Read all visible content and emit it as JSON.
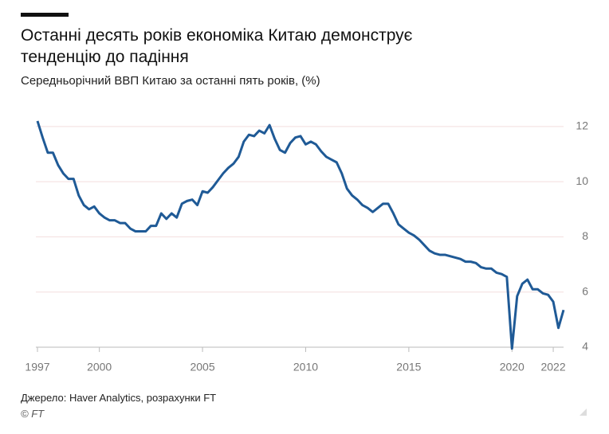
{
  "chart_data": {
    "type": "line",
    "title": "Останні десять років економіка Китаю демонструє тенденцію до падіння",
    "subtitle": "Середньорічний ВВП Китаю за останні пять років, (%)",
    "source": "Джерело: Haver Analytics, розрахунки FT",
    "credit": "© FT",
    "color": "#1f5a96",
    "grid": true,
    "x": [
      1997,
      1997.25,
      1997.5,
      1997.75,
      1998,
      1998.25,
      1998.5,
      1998.75,
      1999,
      1999.25,
      1999.5,
      1999.75,
      2000,
      2000.25,
      2000.5,
      2000.75,
      2001,
      2001.25,
      2001.5,
      2001.75,
      2002,
      2002.25,
      2002.5,
      2002.75,
      2003,
      2003.25,
      2003.5,
      2003.75,
      2004,
      2004.25,
      2004.5,
      2004.75,
      2005,
      2005.25,
      2005.5,
      2005.75,
      2006,
      2006.25,
      2006.5,
      2006.75,
      2007,
      2007.25,
      2007.5,
      2007.75,
      2008,
      2008.25,
      2008.5,
      2008.75,
      2009,
      2009.25,
      2009.5,
      2009.75,
      2010,
      2010.25,
      2010.5,
      2010.75,
      2011,
      2011.25,
      2011.5,
      2011.75,
      2012,
      2012.25,
      2012.5,
      2012.75,
      2013,
      2013.25,
      2013.5,
      2013.75,
      2014,
      2014.25,
      2014.5,
      2014.75,
      2015,
      2015.25,
      2015.5,
      2015.75,
      2016,
      2016.25,
      2016.5,
      2016.75,
      2017,
      2017.25,
      2017.5,
      2017.75,
      2018,
      2018.25,
      2018.5,
      2018.75,
      2019,
      2019.25,
      2019.5,
      2019.75,
      2020,
      2020.25,
      2020.5,
      2020.75,
      2021,
      2021.25,
      2021.5,
      2021.75,
      2022,
      2022.25,
      2022.5
    ],
    "values": [
      12.2,
      11.6,
      11.05,
      11.05,
      10.6,
      10.3,
      10.1,
      10.1,
      9.5,
      9.15,
      9.0,
      9.1,
      8.85,
      8.7,
      8.6,
      8.6,
      8.5,
      8.5,
      8.3,
      8.2,
      8.2,
      8.2,
      8.4,
      8.4,
      8.85,
      8.65,
      8.85,
      8.7,
      9.2,
      9.3,
      9.35,
      9.15,
      9.65,
      9.6,
      9.8,
      10.05,
      10.3,
      10.5,
      10.65,
      10.9,
      11.45,
      11.7,
      11.65,
      11.85,
      11.75,
      12.05,
      11.55,
      11.15,
      11.05,
      11.4,
      11.6,
      11.65,
      11.35,
      11.45,
      11.35,
      11.1,
      10.9,
      10.8,
      10.7,
      10.3,
      9.75,
      9.5,
      9.35,
      9.15,
      9.05,
      8.9,
      9.05,
      9.2,
      9.2,
      8.85,
      8.45,
      8.3,
      8.15,
      8.05,
      7.9,
      7.7,
      7.5,
      7.4,
      7.35,
      7.35,
      7.3,
      7.25,
      7.2,
      7.1,
      7.1,
      7.05,
      6.9,
      6.85,
      6.85,
      6.7,
      6.65,
      6.55,
      3.95,
      5.85,
      6.3,
      6.45,
      6.1,
      6.1,
      5.95,
      5.9,
      5.65,
      4.7,
      5.35
    ],
    "xlim": [
      1997,
      2022.5
    ],
    "xticks": [
      1997,
      2000,
      2005,
      2010,
      2015,
      2020,
      2022
    ],
    "ylim": [
      3.9,
      12.5
    ],
    "yticks": [
      4,
      6,
      8,
      10,
      12
    ]
  }
}
